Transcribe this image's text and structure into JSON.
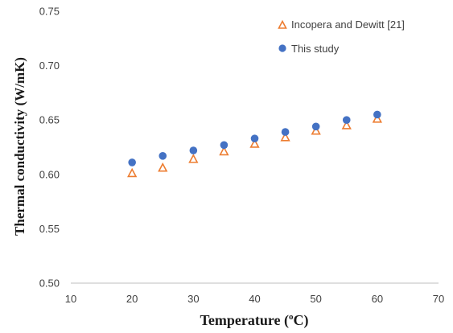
{
  "chart_data": {
    "type": "scatter",
    "title": "",
    "xlabel": "Temperature (",
    "xlabel_sup": "o",
    "xlabel_tail": "C)",
    "ylabel": "Thermal conductivity (W/mK)",
    "xlim": [
      10,
      70
    ],
    "ylim": [
      0.5,
      0.75
    ],
    "xticks": [
      10,
      20,
      30,
      40,
      50,
      60,
      70
    ],
    "yticks": [
      "0.50",
      "0.55",
      "0.60",
      "0.65",
      "0.70",
      "0.75"
    ],
    "grid": false,
    "legend_position": "top-right",
    "series": [
      {
        "name": "Incopera and Dewitt [21]",
        "marker": "triangle-open",
        "color": "#ED7D31",
        "x": [
          20,
          25,
          30,
          35,
          40,
          45,
          50,
          55,
          60
        ],
        "y": [
          0.601,
          0.606,
          0.614,
          0.621,
          0.628,
          0.634,
          0.64,
          0.645,
          0.651
        ]
      },
      {
        "name": "This study",
        "marker": "circle-filled",
        "color": "#4472C4",
        "x": [
          20,
          25,
          30,
          35,
          40,
          45,
          50,
          55,
          60
        ],
        "y": [
          0.611,
          0.617,
          0.622,
          0.627,
          0.633,
          0.639,
          0.644,
          0.65,
          0.655
        ]
      }
    ]
  }
}
